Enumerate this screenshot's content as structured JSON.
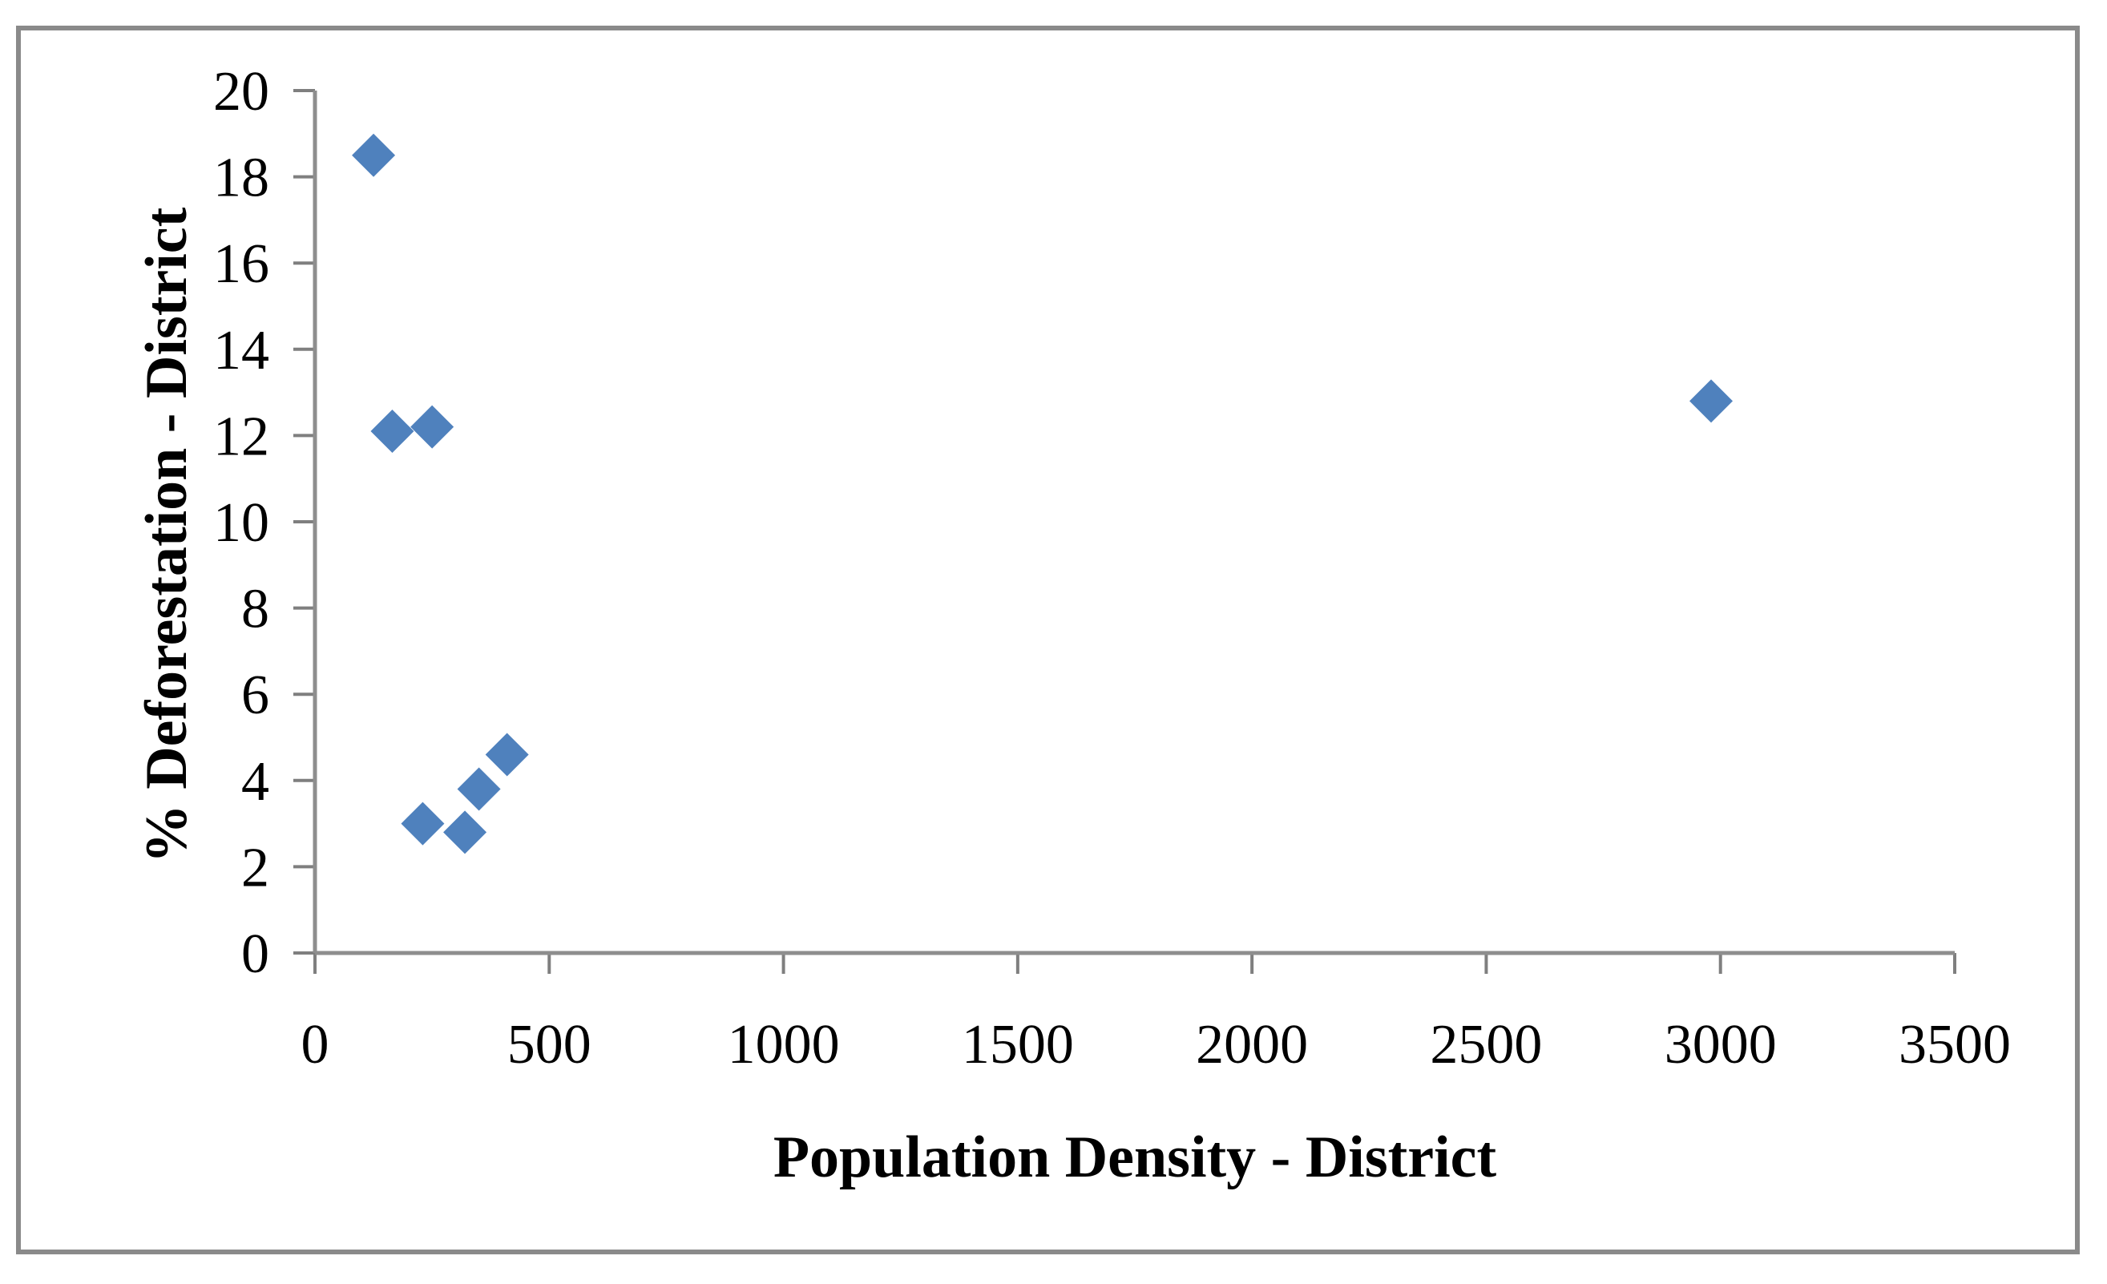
{
  "chart_data": {
    "type": "scatter",
    "title": "",
    "xlabel": "Population Density - District",
    "ylabel": "% Deforestation - District",
    "xlim": [
      0,
      3500
    ],
    "ylim": [
      0,
      20
    ],
    "x_ticks": [
      0,
      500,
      1000,
      1500,
      2000,
      2500,
      3000,
      3500
    ],
    "y_ticks": [
      0,
      2,
      4,
      6,
      8,
      10,
      12,
      14,
      16,
      18,
      20
    ],
    "grid": false,
    "legend": false,
    "marker": {
      "shape": "diamond",
      "color": "#4F81BD"
    },
    "points": [
      {
        "x": 125,
        "y": 18.5
      },
      {
        "x": 165,
        "y": 12.1
      },
      {
        "x": 250,
        "y": 12.2
      },
      {
        "x": 230,
        "y": 3.0
      },
      {
        "x": 320,
        "y": 2.8
      },
      {
        "x": 350,
        "y": 3.8
      },
      {
        "x": 410,
        "y": 4.6
      },
      {
        "x": 2980,
        "y": 12.8
      }
    ]
  },
  "colors": {
    "background": "#FFFFFF",
    "frame_border": "#8A8A8A",
    "axis_line": "#8E8E8E",
    "tick_mark": "#7F7F7F",
    "text": "#000000",
    "marker": "#4F81BD"
  }
}
